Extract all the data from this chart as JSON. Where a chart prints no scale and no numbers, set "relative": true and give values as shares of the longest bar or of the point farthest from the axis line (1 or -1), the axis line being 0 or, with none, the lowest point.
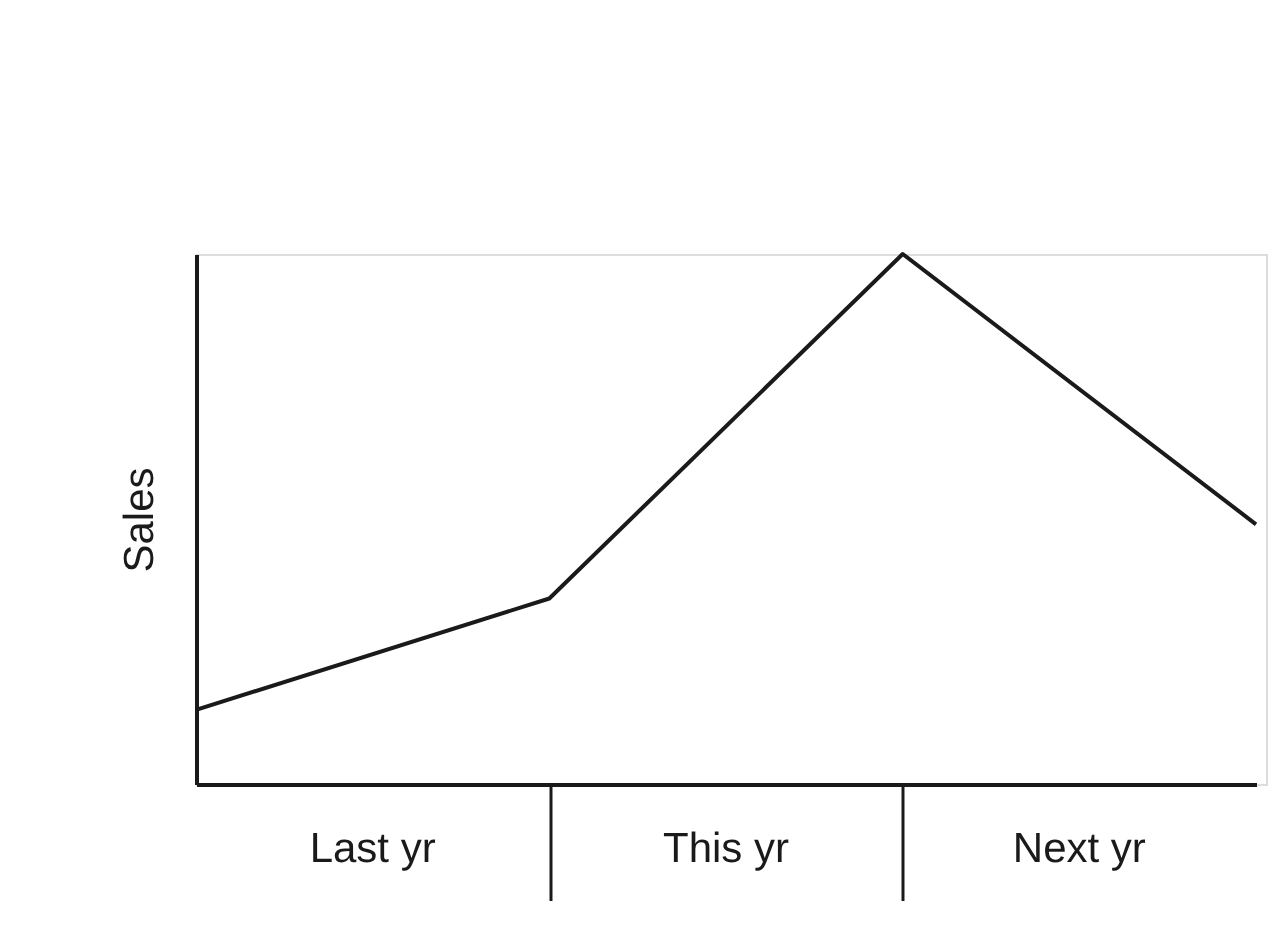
{
  "chart_data": {
    "type": "line",
    "ylabel": "Sales",
    "relative": true,
    "categories": [
      null,
      null,
      null,
      null
    ],
    "values": [
      0.14,
      0.35,
      1,
      0.49
    ],
    "color": "#1a1a1a",
    "annotations": [
      "Last yr",
      "This yr",
      "Next yr"
    ],
    "grid": false,
    "legend": false,
    "marker": "none",
    "line_style": "solid"
  }
}
